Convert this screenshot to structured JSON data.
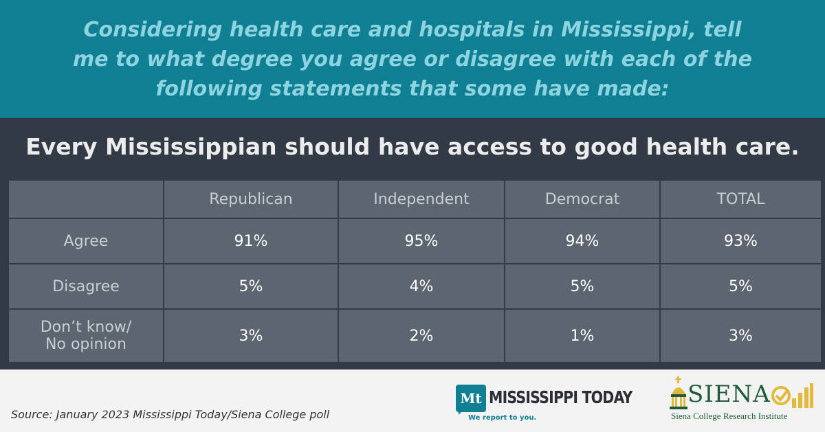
{
  "header": {
    "question": "Considering health care and hospitals in Mississippi, tell me to what degree you agree or disagree with each of the following statements that some have made:"
  },
  "statement": "Every Mississippian should have access to good health care.",
  "chart_data": {
    "type": "table",
    "columns": [
      "Republican",
      "Independent",
      "Democrat",
      "TOTAL"
    ],
    "rows": [
      {
        "label": "Agree",
        "values": [
          "91%",
          "95%",
          "94%",
          "93%"
        ]
      },
      {
        "label": "Disagree",
        "values": [
          "5%",
          "4%",
          "5%",
          "5%"
        ]
      },
      {
        "label": "Don’t know/\nNo opinion",
        "values": [
          "3%",
          "2%",
          "1%",
          "3%"
        ]
      }
    ]
  },
  "footer": {
    "source": "Source: January 2023 Mississippi Today/Siena College poll",
    "mt_logo": {
      "badge": "Mt",
      "name": "MISSISSIPPI TODAY",
      "tagline": "We report to you."
    },
    "siena_logo": {
      "name": "SIENA",
      "subtitle": "Siena College Research Institute"
    }
  },
  "colors": {
    "header_bg": "#0f7f93",
    "header_text": "#8ed3e0",
    "main_bg": "#323a45",
    "cell_bg": "#5d6570",
    "siena_green": "#1f5d38",
    "siena_gold": "#e2b93b"
  }
}
